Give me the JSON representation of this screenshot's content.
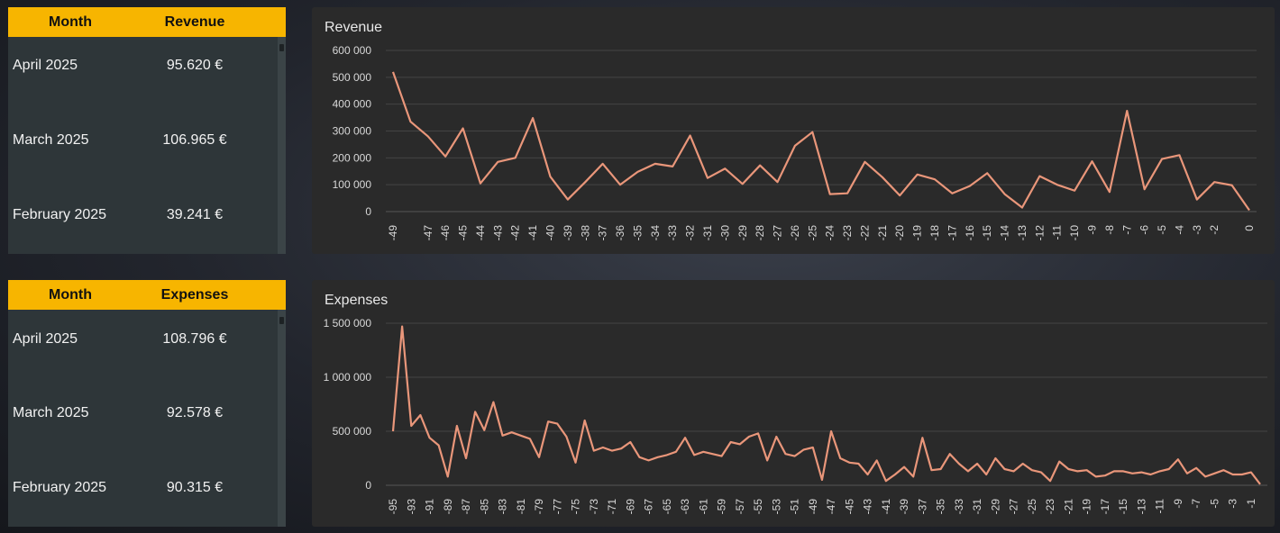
{
  "revenue_table": {
    "headers": {
      "month": "Month",
      "value": "Revenue"
    },
    "rows": [
      {
        "month": "April 2025",
        "value": "95.620 €"
      },
      {
        "month": "March 2025",
        "value": "106.965 €"
      },
      {
        "month": "February 2025",
        "value": "39.241 €"
      }
    ]
  },
  "expenses_table": {
    "headers": {
      "month": "Month",
      "value": "Expenses"
    },
    "rows": [
      {
        "month": "April 2025",
        "value": "108.796 €"
      },
      {
        "month": "March 2025",
        "value": "92.578 €"
      },
      {
        "month": "February 2025",
        "value": "90.315 €"
      }
    ]
  },
  "colors": {
    "accent": "#f7b500",
    "line": "#e9967a",
    "panel": "#2a2a2a"
  },
  "chart_data": [
    {
      "type": "line",
      "title": "Revenue",
      "ylim": [
        0,
        600000
      ],
      "yticks": [
        0,
        100000,
        200000,
        300000,
        400000,
        500000,
        600000
      ],
      "ytick_labels": [
        "0",
        "100 000",
        "200 000",
        "300 000",
        "400 000",
        "500 000",
        "600 000"
      ],
      "x": [
        -49,
        -48,
        -47,
        -46,
        -45,
        -44,
        -43,
        -42,
        -41,
        -40,
        -39,
        -38,
        -37,
        -36,
        -35,
        -34,
        -33,
        -32,
        -31,
        -30,
        -29,
        -28,
        -27,
        -26,
        -25,
        -24,
        -23,
        -22,
        -21,
        -20,
        -19,
        -18,
        -17,
        -16,
        -15,
        -14,
        -13,
        -12,
        -11,
        -10,
        -9,
        -8,
        -7,
        -6,
        -5,
        -4,
        -3,
        -2,
        -1,
        0
      ],
      "xtick_labels": [
        "-49",
        "-47",
        "-46",
        "-45",
        "-44",
        "-43",
        "-42",
        "-41",
        "-40",
        "-39",
        "-38",
        "-37",
        "-36",
        "-35",
        "-34",
        "-33",
        "-32",
        "-31",
        "-30",
        "-29",
        "-28",
        "-27",
        "-26",
        "-25",
        "-24",
        "-23",
        "-22",
        "-21",
        "-20",
        "-19",
        "-18",
        "-17",
        "-16",
        "-15",
        "-14",
        "-13",
        "-12",
        "-11",
        "-10",
        "-9",
        "-8",
        "-7",
        "-6",
        "-5",
        "-4",
        "-3",
        "-2",
        "0"
      ],
      "values": [
        520000,
        335000,
        280000,
        205000,
        310000,
        105000,
        185000,
        200000,
        348000,
        130000,
        45000,
        110000,
        178000,
        100000,
        148000,
        178000,
        168000,
        283000,
        125000,
        160000,
        103000,
        172000,
        110000,
        245000,
        296000,
        65000,
        68000,
        185000,
        128000,
        60000,
        138000,
        120000,
        68000,
        95000,
        143000,
        65000,
        15000,
        132000,
        100000,
        78000,
        187000,
        73000,
        375000,
        83000,
        196000,
        210000,
        45000,
        110000,
        98000,
        5000
      ],
      "grid": true
    },
    {
      "type": "line",
      "title": "Expenses",
      "ylim": [
        0,
        1500000
      ],
      "yticks": [
        0,
        500000,
        1000000,
        1500000
      ],
      "ytick_labels": [
        "0",
        "500 000",
        "1 000 000",
        "1 500 000"
      ],
      "x": [
        -95,
        -94,
        -93,
        -92,
        -91,
        -90,
        -89,
        -88,
        -87,
        -86,
        -85,
        -84,
        -83,
        -82,
        -81,
        -80,
        -79,
        -78,
        -77,
        -76,
        -75,
        -74,
        -73,
        -72,
        -71,
        -70,
        -69,
        -68,
        -67,
        -66,
        -65,
        -64,
        -63,
        -62,
        -61,
        -60,
        -59,
        -58,
        -57,
        -56,
        -55,
        -54,
        -53,
        -52,
        -51,
        -50,
        -49,
        -48,
        -47,
        -46,
        -45,
        -44,
        -43,
        -42,
        -41,
        -40,
        -39,
        -38,
        -37,
        -36,
        -35,
        -34,
        -33,
        -32,
        -31,
        -30,
        -29,
        -28,
        -27,
        -26,
        -25,
        -24,
        -23,
        -22,
        -21,
        -20,
        -19,
        -18,
        -17,
        -16,
        -15,
        -14,
        -13,
        -12,
        -11,
        -10,
        -9,
        -8,
        -7,
        -6,
        -5,
        -4,
        -3,
        -2,
        -1,
        0
      ],
      "xtick_labels": [
        "-95",
        "-93",
        "-91",
        "-89",
        "-87",
        "-85",
        "-83",
        "-81",
        "-79",
        "-77",
        "-75",
        "-73",
        "-71",
        "-69",
        "-67",
        "-65",
        "-63",
        "-61",
        "-59",
        "-57",
        "-55",
        "-53",
        "-51",
        "-49",
        "-47",
        "-45",
        "-43",
        "-41",
        "-39",
        "-37",
        "-35",
        "-33",
        "-31",
        "-29",
        "-27",
        "-25",
        "-23",
        "-21",
        "-19",
        "-17",
        "-15",
        "-13",
        "-11",
        "-9",
        "-7",
        "-5",
        "-3",
        "-1"
      ],
      "values": [
        500000,
        1470000,
        550000,
        650000,
        440000,
        370000,
        80000,
        550000,
        250000,
        680000,
        510000,
        770000,
        460000,
        490000,
        460000,
        430000,
        260000,
        590000,
        570000,
        450000,
        210000,
        600000,
        320000,
        350000,
        320000,
        340000,
        400000,
        260000,
        230000,
        260000,
        280000,
        310000,
        440000,
        280000,
        310000,
        290000,
        270000,
        400000,
        380000,
        450000,
        480000,
        230000,
        450000,
        290000,
        270000,
        330000,
        350000,
        50000,
        500000,
        250000,
        210000,
        200000,
        100000,
        230000,
        40000,
        100000,
        170000,
        80000,
        440000,
        140000,
        150000,
        290000,
        200000,
        130000,
        200000,
        100000,
        250000,
        150000,
        130000,
        200000,
        140000,
        120000,
        40000,
        220000,
        150000,
        130000,
        140000,
        80000,
        90000,
        130000,
        130000,
        110000,
        120000,
        100000,
        130000,
        150000,
        240000,
        110000,
        160000,
        80000,
        110000,
        140000,
        100000,
        100000,
        120000,
        10000
      ],
      "grid": true
    }
  ]
}
